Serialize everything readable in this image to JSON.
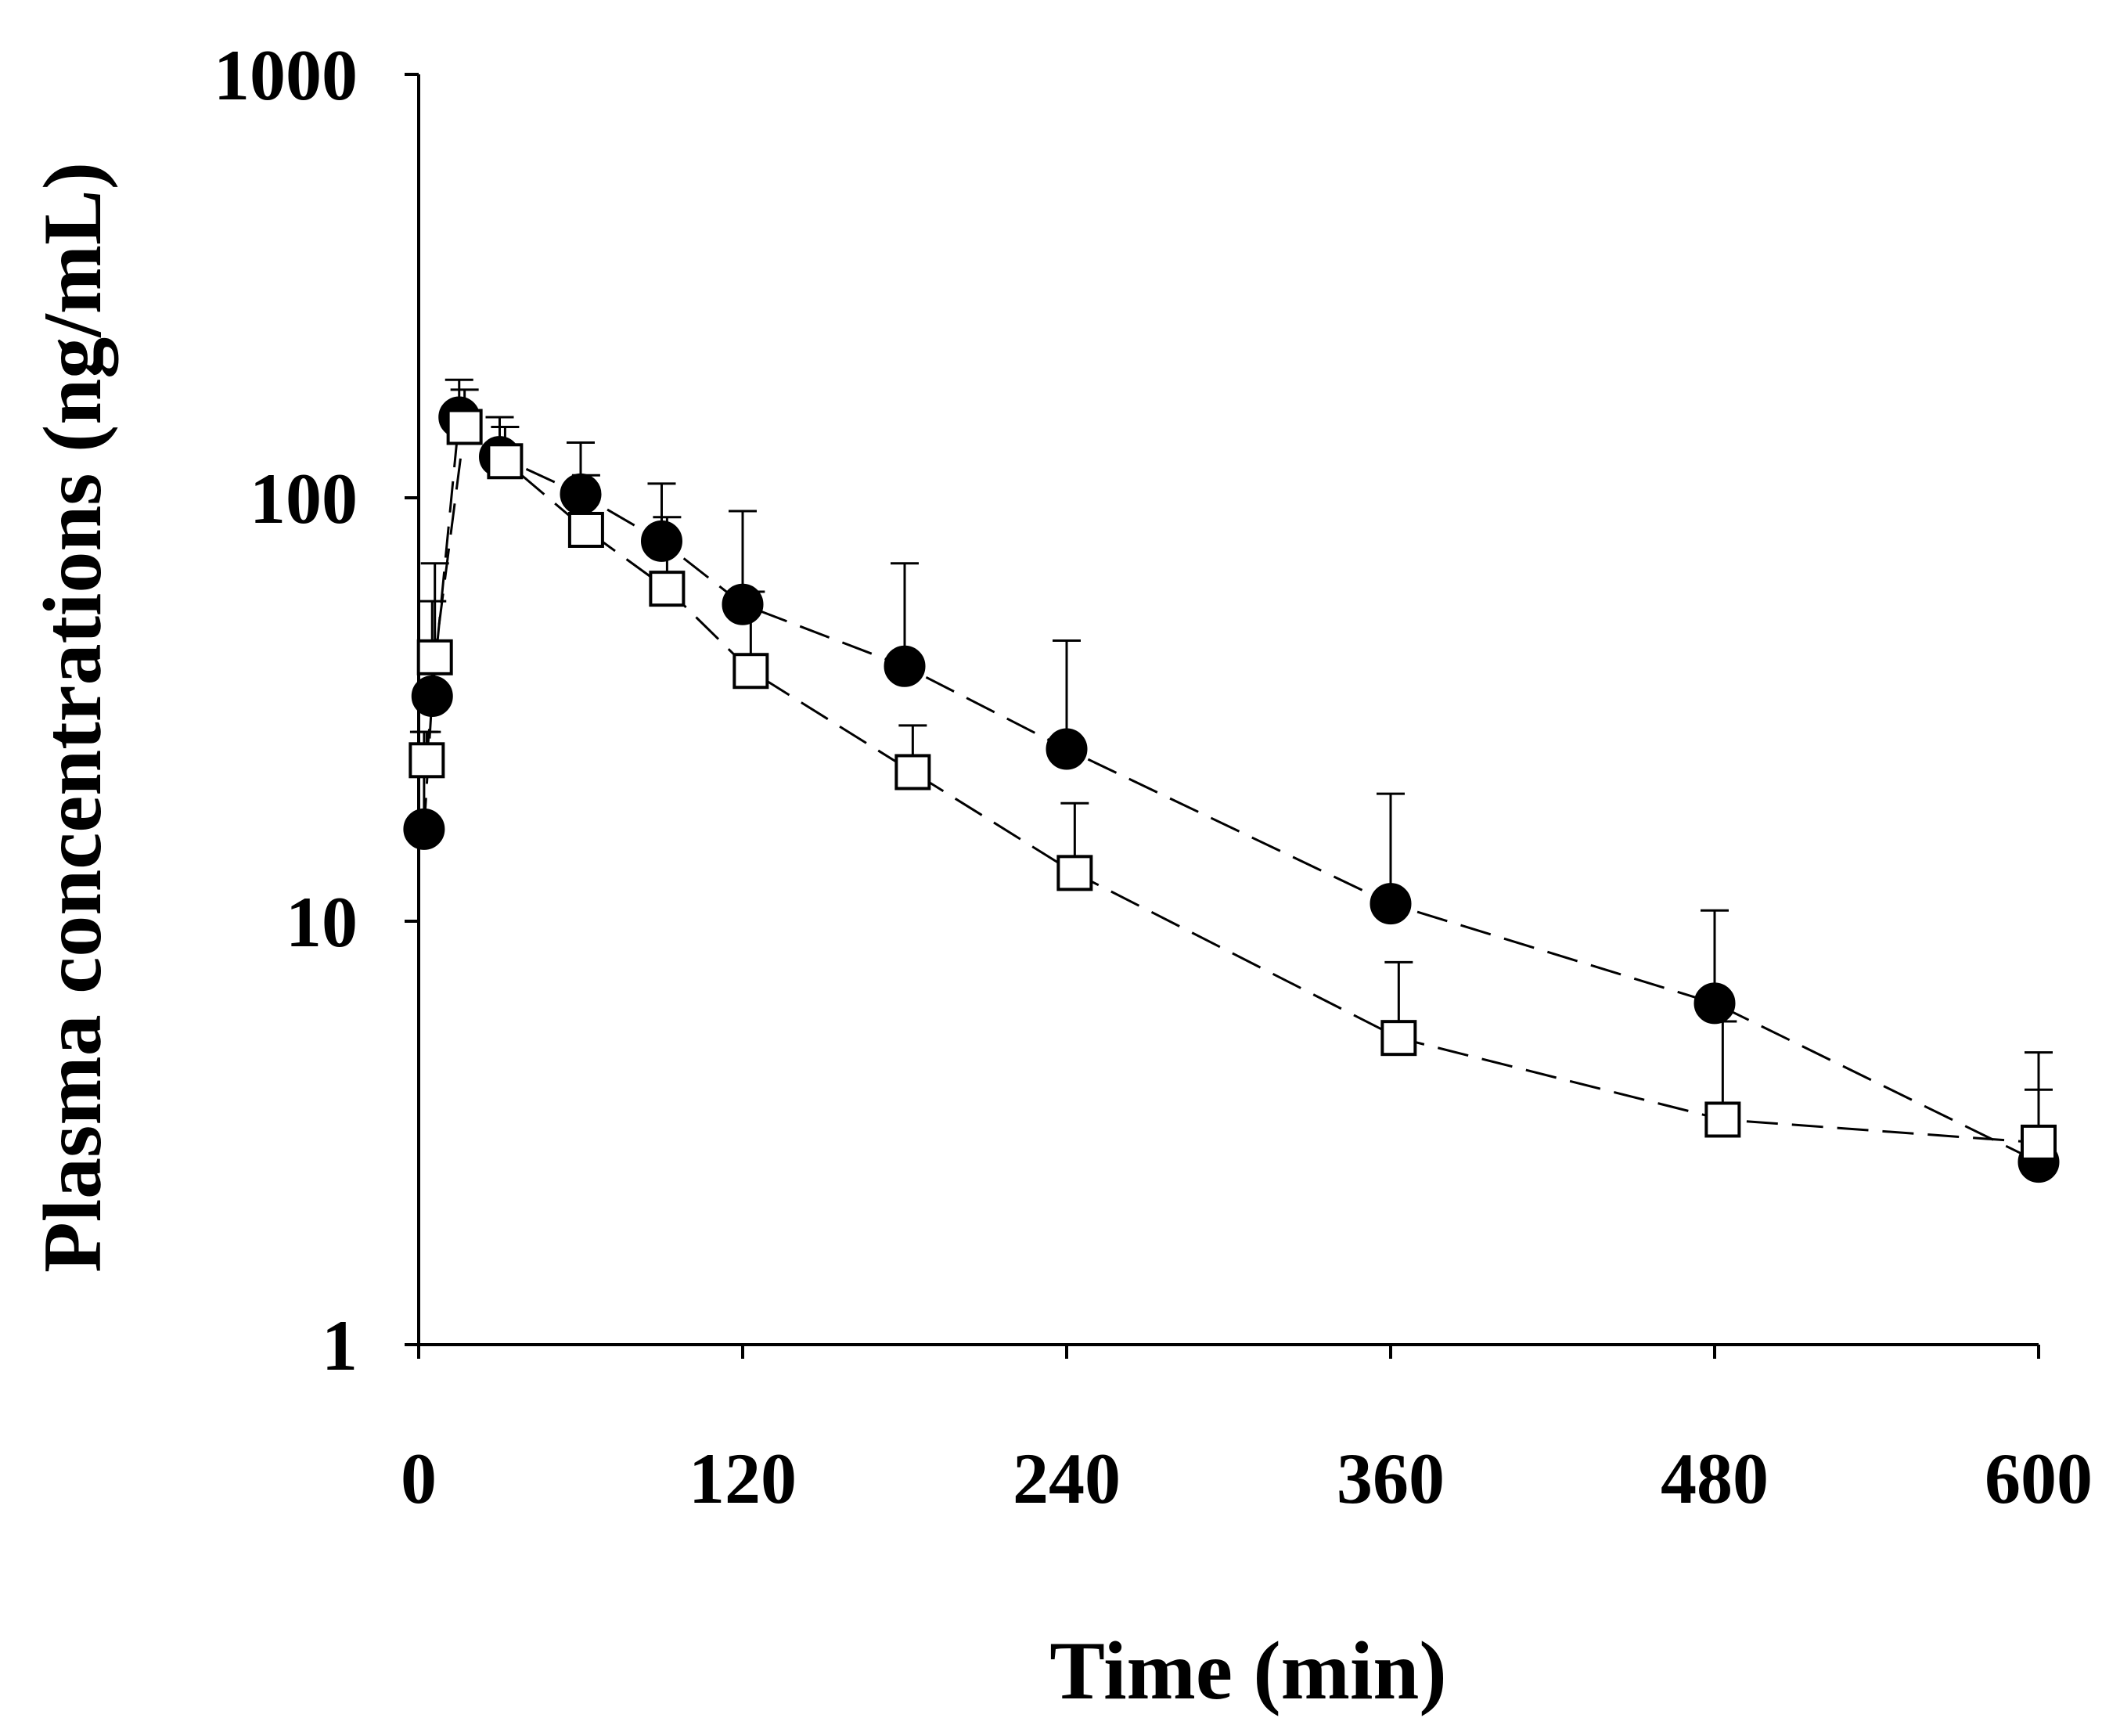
{
  "chart_data": {
    "type": "line",
    "title": "",
    "xlabel": "Time (min)",
    "ylabel": "Plasma concentrations (ng/mL)",
    "xscale": "linear",
    "yscale": "log",
    "xlim": [
      0,
      600
    ],
    "ylim": [
      1,
      1000
    ],
    "xticks": [
      0,
      120,
      240,
      360,
      480,
      600
    ],
    "xtick_labels": [
      "0",
      "120",
      "240",
      "360",
      "480",
      "600"
    ],
    "yticks": [
      1,
      10,
      100,
      1000
    ],
    "ytick_labels": [
      "1",
      "10",
      "100",
      "1000"
    ],
    "grid": false,
    "legend": "none",
    "series": [
      {
        "name": "Series 1 (filled circles)",
        "marker": "filled-circle",
        "line": "dashed",
        "color": "#000000",
        "x": [
          2,
          5,
          15,
          30,
          60,
          90,
          120,
          180,
          240,
          360,
          480,
          600
        ],
        "y": [
          16.5,
          34,
          155,
          125,
          102,
          79,
          56,
          40,
          25.5,
          11,
          6.4,
          2.7
        ],
        "error_upper": [
          28,
          57,
          190,
          155,
          135,
          108,
          93,
          70,
          46,
          20,
          10.6,
          4.9
        ]
      },
      {
        "name": "Series 2 (open squares)",
        "marker": "open-square",
        "line": "dashed",
        "color": "#000000",
        "x": [
          3,
          6,
          17,
          32,
          62,
          92,
          123,
          183,
          243,
          363,
          483,
          600
        ],
        "y": [
          24,
          42,
          147,
          122,
          84,
          61,
          39,
          22.5,
          13,
          5.3,
          3.4,
          3.0
        ],
        "error_upper": [
          28,
          70,
          180,
          147,
          113,
          90,
          60,
          29,
          19,
          8,
          5.8,
          4.0
        ]
      }
    ]
  }
}
